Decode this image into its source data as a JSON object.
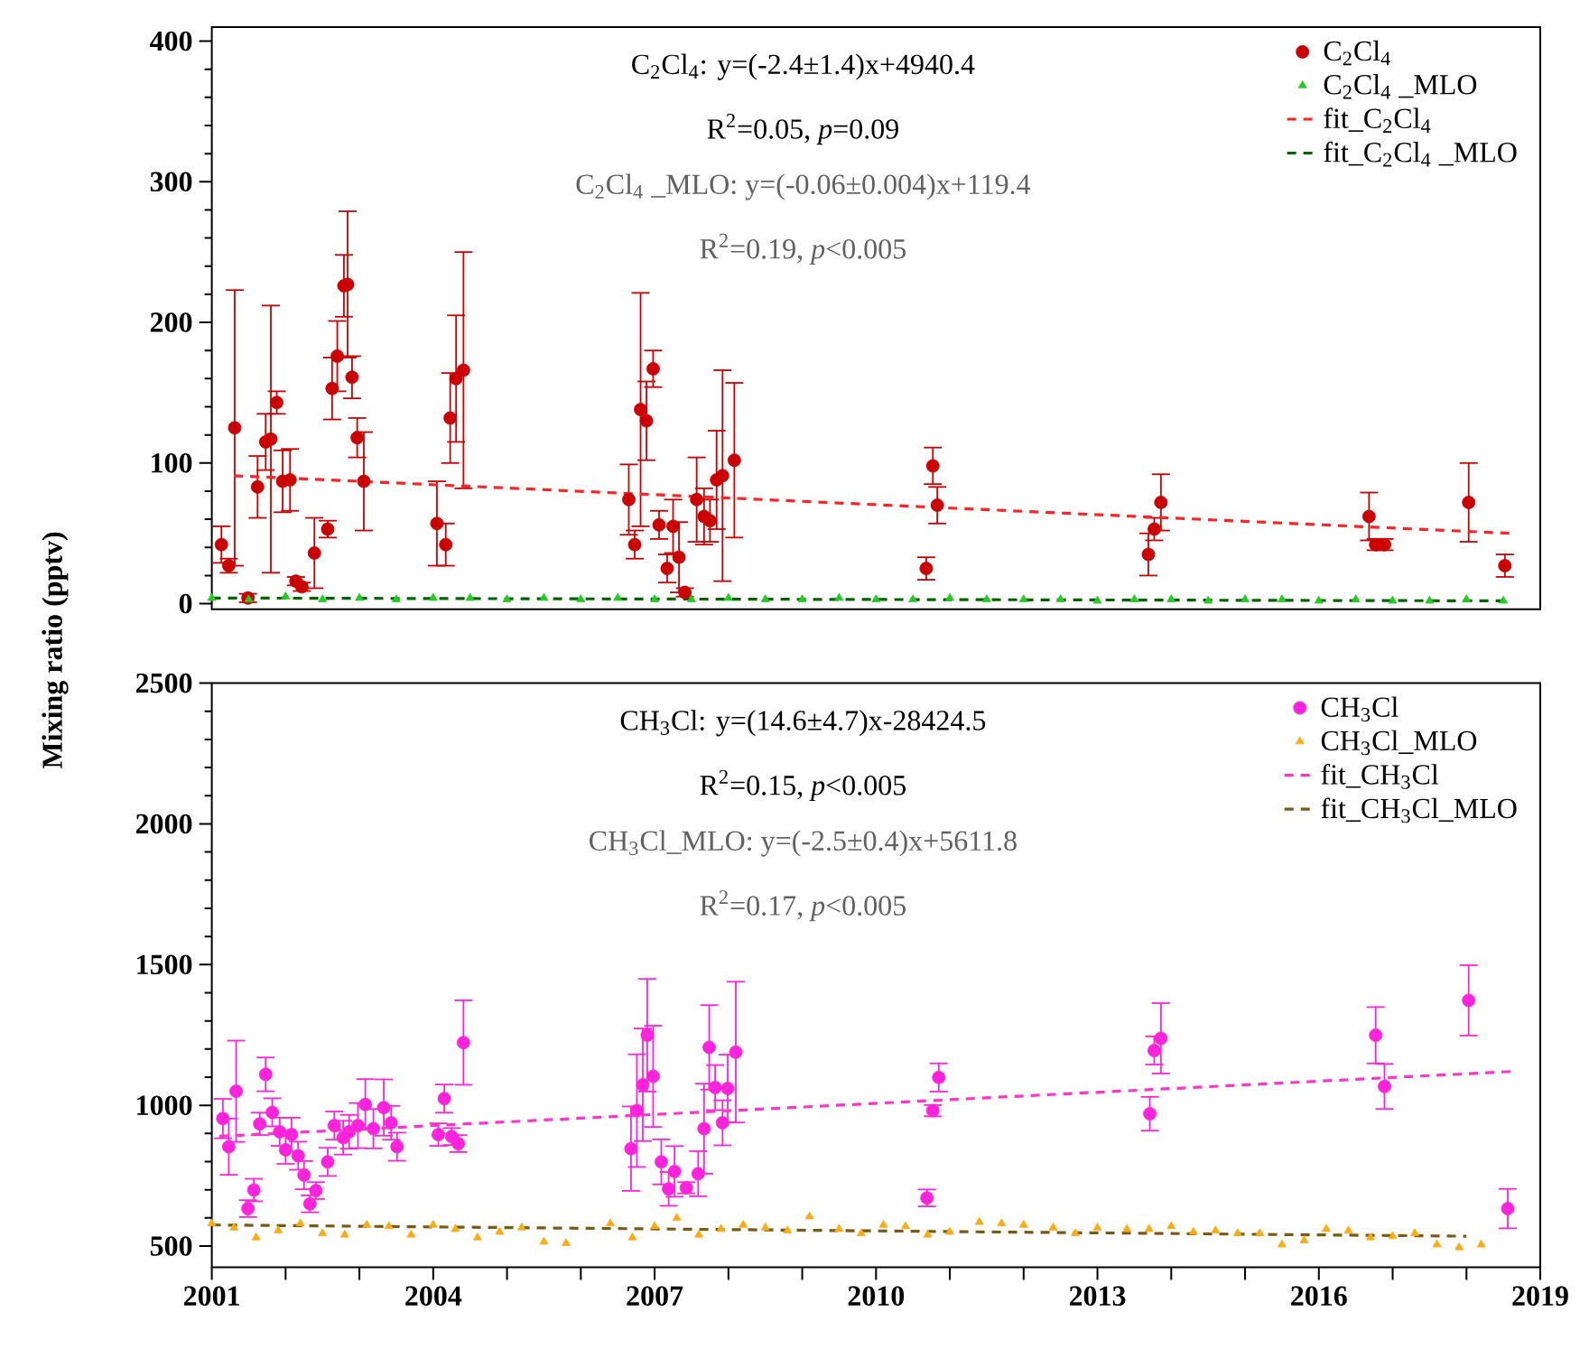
{
  "chart_data": [
    {
      "type": "scatter",
      "ylabel": "Mixing ratio  (pptv)",
      "xlim": [
        2001,
        2019
      ],
      "ylim": [
        -4,
        410
      ],
      "yticks": [
        0,
        100,
        200,
        300,
        400
      ],
      "tick_labels": "y",
      "legend": "top right",
      "annotations": [
        "C$_{2}$Cl$_{4}$: y=(-2.4±1.4)x+4940.4",
        "R$^{2}$=0.05, *p*=0.09",
        "C$_{2}$Cl$_{4}$ _MLO: y=(-0.06±0.004)x+119.4",
        "R$^{2}$=0.19, *p*<0.005"
      ],
      "series": [
        {
          "name": "C$_{2}$Cl$_{4}$",
          "color": "#cc0000",
          "marker": "circle",
          "x": [
            2001.13,
            2001.23,
            2001.31,
            2001.49,
            2001.62,
            2001.73,
            2001.8,
            2001.88,
            2001.96,
            2002.06,
            2002.14,
            2002.22,
            2002.39,
            2002.57,
            2002.63,
            2002.7,
            2002.79,
            2002.84,
            2002.9,
            2002.97,
            2003.06,
            2004.05,
            2004.17,
            2004.23,
            2004.31,
            2004.41,
            2006.65,
            2006.73,
            2006.81,
            2006.89,
            2006.98,
            2007.06,
            2007.17,
            2007.25,
            2007.33,
            2007.41,
            2007.57,
            2007.67,
            2007.75,
            2007.84,
            2007.92,
            2008.08,
            2010.68,
            2010.77,
            2010.83,
            2013.69,
            2013.77,
            2013.86,
            2016.68,
            2016.77,
            2016.89,
            2018.03,
            2018.52
          ],
          "values": [
            42,
            27,
            125,
            4,
            83,
            115,
            117,
            143,
            87,
            88,
            16,
            12,
            36,
            53,
            153,
            176,
            226,
            227,
            161,
            118,
            87,
            57,
            42,
            132,
            160,
            166,
            74,
            42,
            138,
            130,
            167,
            56,
            25,
            55,
            33,
            8,
            74,
            62,
            59,
            88,
            91,
            102,
            25,
            98,
            70,
            35,
            53,
            72,
            62,
            42,
            42,
            72,
            27
          ],
          "errors": [
            13,
            5,
            98,
            3,
            22,
            20,
            95,
            8,
            22,
            22,
            3,
            3,
            25,
            6,
            22,
            25,
            22,
            52,
            15,
            14,
            35,
            30,
            15,
            32,
            45,
            84,
            25,
            10,
            83,
            28,
            13,
            10,
            10,
            19,
            25,
            3,
            30,
            20,
            15,
            35,
            75,
            55,
            8,
            13,
            13,
            15,
            8,
            20,
            17,
            4,
            4,
            28,
            8
          ]
        },
        {
          "name": "C$_{2}$Cl$_{4}$ _MLO",
          "color": "#22cc22",
          "marker": "triangle",
          "x": [
            2001.0,
            2001.5,
            2002.0,
            2002.5,
            2003.0,
            2003.5,
            2004.0,
            2004.5,
            2005.0,
            2005.5,
            2006.0,
            2006.5,
            2007.0,
            2007.5,
            2008.0,
            2008.5,
            2009.0,
            2009.5,
            2010.0,
            2010.5,
            2011.0,
            2011.5,
            2012.0,
            2012.5,
            2013.0,
            2013.5,
            2014.0,
            2014.5,
            2015.0,
            2015.5,
            2016.0,
            2016.5,
            2017.0,
            2017.5,
            2018.0,
            2018.5
          ],
          "values": [
            4,
            3,
            5,
            3,
            4,
            3,
            4,
            4,
            3,
            4,
            3,
            4,
            3,
            3,
            4,
            3,
            3,
            4,
            3,
            3,
            4,
            3,
            3,
            3,
            2,
            3,
            3,
            2,
            3,
            3,
            2,
            3,
            2,
            2,
            3,
            2
          ]
        },
        {
          "name": "fit_C$_{2}$Cl$_{4}$",
          "type": "line",
          "line_style": "dashed",
          "color": "#ff2222",
          "x": [
            2001.3,
            2018.6
          ],
          "values": [
            91,
            50
          ]
        },
        {
          "name": "fit_C$_{2}$Cl$_{4}$ _MLO",
          "type": "line",
          "line_style": "dashed",
          "color": "#006600",
          "x": [
            2001.0,
            2018.5
          ],
          "values": [
            4,
            2
          ]
        }
      ]
    },
    {
      "type": "scatter",
      "xlim": [
        2001,
        2019
      ],
      "ylim": [
        425,
        2500
      ],
      "yticks": [
        500,
        1000,
        1500,
        2000,
        2500
      ],
      "legend": "top right",
      "xticks": [
        2001,
        {
          "value": 2002,
          "label": null
        },
        {
          "value": 2003,
          "label": null
        },
        2004,
        {
          "value": 2005,
          "label": null
        },
        {
          "value": 2006,
          "label": null
        },
        2007,
        {
          "value": 2008,
          "label": null
        },
        {
          "value": 2009,
          "label": null
        },
        2010,
        {
          "value": 2011,
          "label": null
        },
        {
          "value": 2012,
          "label": null
        },
        2013,
        {
          "value": 2014,
          "label": null
        },
        {
          "value": 2015,
          "label": null
        },
        2016,
        {
          "value": 2017,
          "label": null
        },
        {
          "value": 2018,
          "label": null
        },
        2019
      ],
      "annotations": [
        "CH$_{3}$Cl: y=(14.6±4.7)x-28424.5",
        "R$^{2}$=0.15, *p*<0.005",
        "CH$_{3}$Cl_MLO: y=(-2.5±0.4)x+5611.8",
        "R$^{2}$=0.17, *p*<0.005"
      ],
      "series": [
        {
          "name": "CH$_{3}$Cl",
          "color": "#ff22dd",
          "marker": "circle",
          "x": [
            2001.15,
            2001.23,
            2001.33,
            2001.49,
            2001.57,
            2001.65,
            2001.73,
            2001.82,
            2001.92,
            2002.0,
            2002.08,
            2002.17,
            2002.25,
            2002.33,
            2002.41,
            2002.57,
            2002.66,
            2002.78,
            2002.86,
            2002.98,
            2003.08,
            2003.19,
            2003.33,
            2003.43,
            2003.51,
            2004.07,
            2004.15,
            2004.25,
            2004.34,
            2004.41,
            2006.68,
            2006.76,
            2006.84,
            2006.9,
            2006.98,
            2007.09,
            2007.19,
            2007.27,
            2007.43,
            2007.59,
            2007.67,
            2007.74,
            2007.82,
            2007.92,
            2007.99,
            2008.1,
            2010.69,
            2010.77,
            2010.85,
            2013.71,
            2013.77,
            2013.86,
            2016.77,
            2016.89,
            2018.03,
            2018.56
          ],
          "values": [
            953,
            853,
            1050,
            633,
            699,
            934,
            1110,
            975,
            906,
            842,
            896,
            821,
            752,
            650,
            697,
            799,
            928,
            885,
            906,
            928,
            1003,
            917,
            992,
            938,
            853,
            896,
            1024,
            889,
            864,
            1223,
            846,
            981,
            1073,
            1249,
            1103,
            799,
            703,
            765,
            707,
            757,
            917,
            1206,
            1063,
            938,
            1060,
            1189,
            671,
            981,
            1099,
            970,
            1195,
            1238,
            1249,
            1067,
            1373,
            633
          ],
          "errors": [
            70,
            100,
            180,
            30,
            40,
            40,
            60,
            50,
            50,
            50,
            60,
            50,
            50,
            30,
            30,
            50,
            50,
            60,
            60,
            80,
            90,
            70,
            100,
            60,
            50,
            40,
            50,
            30,
            30,
            150,
            150,
            200,
            200,
            200,
            180,
            80,
            60,
            90,
            20,
            80,
            160,
            150,
            80,
            80,
            120,
            250,
            30,
            20,
            50,
            60,
            50,
            125,
            100,
            80,
            125,
            70
          ]
        },
        {
          "name": "CH$_{3}$Cl_MLO",
          "color": "#ffaa11",
          "marker": "triangle",
          "x": [
            2001.0,
            2001.3,
            2001.6,
            2001.9,
            2002.2,
            2002.5,
            2002.8,
            2003.1,
            2003.4,
            2003.7,
            2004.0,
            2004.3,
            2004.6,
            2004.9,
            2005.2,
            2005.5,
            2005.8,
            2006.4,
            2006.7,
            2007.0,
            2007.3,
            2007.6,
            2007.9,
            2008.2,
            2008.5,
            2008.8,
            2009.1,
            2009.5,
            2009.8,
            2010.1,
            2010.4,
            2010.7,
            2011.0,
            2011.4,
            2011.7,
            2012.0,
            2012.4,
            2012.7,
            2013.0,
            2013.4,
            2013.7,
            2014.0,
            2014.3,
            2014.6,
            2014.9,
            2015.2,
            2015.5,
            2015.8,
            2016.1,
            2016.4,
            2016.7,
            2017.0,
            2017.3,
            2017.6,
            2017.9,
            2018.2
          ],
          "values": [
            580,
            565,
            530,
            555,
            580,
            545,
            540,
            575,
            570,
            540,
            575,
            560,
            530,
            550,
            565,
            515,
            510,
            580,
            530,
            570,
            600,
            540,
            560,
            575,
            565,
            555,
            605,
            560,
            545,
            575,
            570,
            540,
            550,
            585,
            580,
            575,
            565,
            545,
            565,
            560,
            560,
            570,
            550,
            555,
            545,
            545,
            505,
            520,
            560,
            555,
            530,
            535,
            545,
            505,
            495,
            505
          ]
        },
        {
          "name": "fit_CH$_{3}$Cl",
          "type": "line",
          "line_style": "dashed",
          "color": "#ff33cc",
          "x": [
            2001.1,
            2018.6
          ],
          "values": [
            890,
            1120
          ]
        },
        {
          "name": "fit_CH$_{3}$Cl_MLO",
          "type": "line",
          "line_style": "dashed",
          "color": "#7a5a10",
          "x": [
            2001.0,
            2018.0
          ],
          "values": [
            575,
            535
          ]
        }
      ]
    }
  ]
}
